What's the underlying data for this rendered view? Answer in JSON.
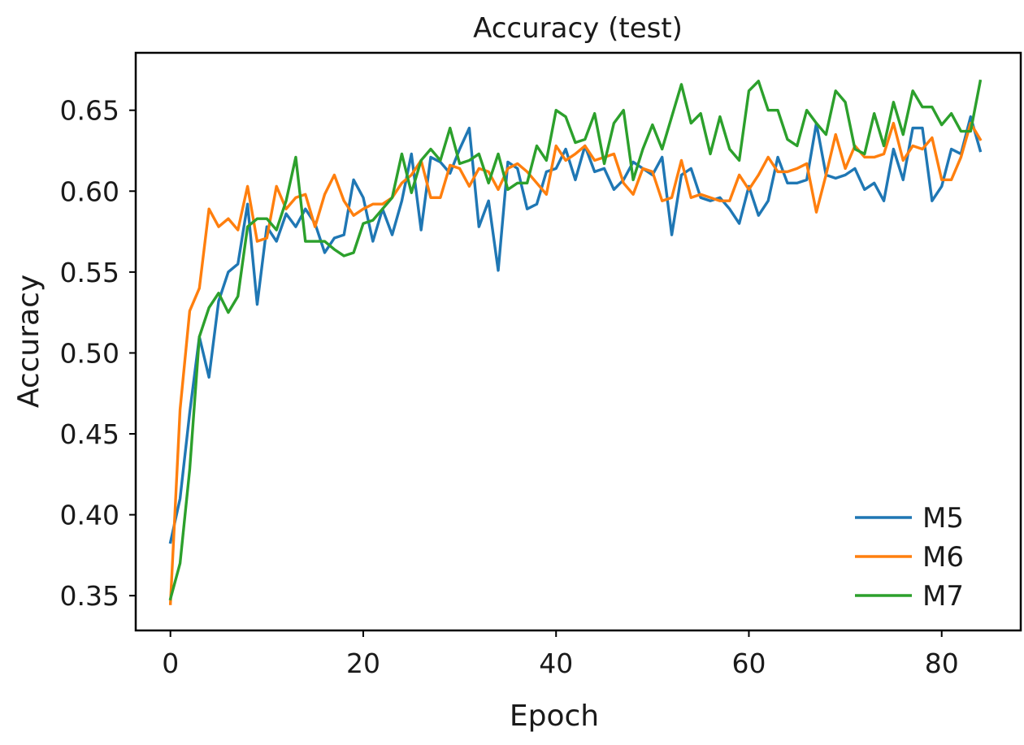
{
  "chart_data": {
    "type": "line",
    "title": "Accuracy (test)",
    "xlabel": "Epoch",
    "ylabel": "Accuracy",
    "xlim": [
      -3.6,
      88.2
    ],
    "ylim": [
      0.3285,
      0.6855
    ],
    "x_ticks": [
      0,
      20,
      40,
      60,
      80
    ],
    "x_tick_labels": [
      "0",
      "20",
      "40",
      "60",
      "80"
    ],
    "y_ticks": [
      0.35,
      0.4,
      0.45,
      0.5,
      0.55,
      0.6,
      0.65
    ],
    "y_tick_labels": [
      "0.35",
      "0.40",
      "0.45",
      "0.50",
      "0.55",
      "0.60",
      "0.65"
    ],
    "grid": false,
    "legend": {
      "position": "lower-right",
      "entries": [
        "M5",
        "M6",
        "M7"
      ]
    },
    "x": [
      0,
      1,
      2,
      3,
      4,
      5,
      6,
      7,
      8,
      9,
      10,
      11,
      12,
      13,
      14,
      15,
      16,
      17,
      18,
      19,
      20,
      21,
      22,
      23,
      24,
      25,
      26,
      27,
      28,
      29,
      30,
      31,
      32,
      33,
      34,
      35,
      36,
      37,
      38,
      39,
      40,
      41,
      42,
      43,
      44,
      45,
      46,
      47,
      48,
      49,
      50,
      51,
      52,
      53,
      54,
      55,
      56,
      57,
      58,
      59,
      60,
      61,
      62,
      63,
      64,
      65,
      66,
      67,
      68,
      69,
      70,
      71,
      72,
      73,
      74,
      75,
      76,
      77,
      78,
      79,
      80,
      81,
      82,
      83,
      84
    ],
    "series": [
      {
        "name": "M5",
        "color": "#1f77b4",
        "values": [
          0.383,
          0.41,
          0.463,
          0.51,
          0.485,
          0.532,
          0.55,
          0.555,
          0.592,
          0.53,
          0.578,
          0.569,
          0.586,
          0.578,
          0.589,
          0.58,
          0.562,
          0.571,
          0.573,
          0.607,
          0.596,
          0.569,
          0.589,
          0.573,
          0.594,
          0.623,
          0.576,
          0.621,
          0.618,
          0.611,
          0.626,
          0.639,
          0.578,
          0.594,
          0.551,
          0.618,
          0.614,
          0.589,
          0.592,
          0.612,
          0.614,
          0.626,
          0.607,
          0.628,
          0.612,
          0.614,
          0.601,
          0.607,
          0.618,
          0.614,
          0.61,
          0.621,
          0.573,
          0.61,
          0.614,
          0.596,
          0.594,
          0.596,
          0.589,
          0.58,
          0.603,
          0.585,
          0.594,
          0.621,
          0.605,
          0.605,
          0.607,
          0.642,
          0.61,
          0.608,
          0.61,
          0.614,
          0.601,
          0.605,
          0.594,
          0.626,
          0.607,
          0.639,
          0.639,
          0.594,
          0.603,
          0.626,
          0.623,
          0.646,
          0.625
        ]
      },
      {
        "name": "M6",
        "color": "#ff7f0e",
        "values": [
          0.345,
          0.465,
          0.526,
          0.54,
          0.589,
          0.578,
          0.583,
          0.576,
          0.603,
          0.569,
          0.571,
          0.603,
          0.589,
          0.596,
          0.598,
          0.578,
          0.598,
          0.61,
          0.594,
          0.585,
          0.589,
          0.592,
          0.592,
          0.596,
          0.605,
          0.61,
          0.619,
          0.596,
          0.596,
          0.616,
          0.614,
          0.603,
          0.614,
          0.612,
          0.601,
          0.614,
          0.617,
          0.612,
          0.605,
          0.598,
          0.628,
          0.619,
          0.623,
          0.628,
          0.619,
          0.621,
          0.623,
          0.605,
          0.598,
          0.614,
          0.612,
          0.594,
          0.596,
          0.619,
          0.596,
          0.598,
          0.596,
          0.594,
          0.594,
          0.61,
          0.601,
          0.61,
          0.621,
          0.612,
          0.612,
          0.614,
          0.617,
          0.587,
          0.61,
          0.635,
          0.614,
          0.628,
          0.621,
          0.621,
          0.623,
          0.642,
          0.619,
          0.628,
          0.626,
          0.633,
          0.607,
          0.607,
          0.621,
          0.642,
          0.632
        ]
      },
      {
        "name": "M7",
        "color": "#2ca02c",
        "values": [
          0.348,
          0.37,
          0.428,
          0.51,
          0.528,
          0.537,
          0.525,
          0.535,
          0.578,
          0.583,
          0.583,
          0.576,
          0.594,
          0.621,
          0.569,
          0.569,
          0.569,
          0.564,
          0.56,
          0.562,
          0.58,
          0.582,
          0.589,
          0.596,
          0.623,
          0.599,
          0.619,
          0.626,
          0.619,
          0.639,
          0.617,
          0.619,
          0.623,
          0.605,
          0.623,
          0.601,
          0.605,
          0.605,
          0.628,
          0.619,
          0.65,
          0.646,
          0.63,
          0.632,
          0.648,
          0.617,
          0.642,
          0.65,
          0.607,
          0.626,
          0.641,
          0.626,
          0.646,
          0.666,
          0.642,
          0.648,
          0.623,
          0.646,
          0.626,
          0.619,
          0.662,
          0.668,
          0.65,
          0.65,
          0.632,
          0.628,
          0.65,
          0.642,
          0.635,
          0.662,
          0.655,
          0.626,
          0.623,
          0.648,
          0.628,
          0.655,
          0.635,
          0.662,
          0.652,
          0.652,
          0.641,
          0.648,
          0.637,
          0.637,
          0.668
        ]
      }
    ]
  }
}
